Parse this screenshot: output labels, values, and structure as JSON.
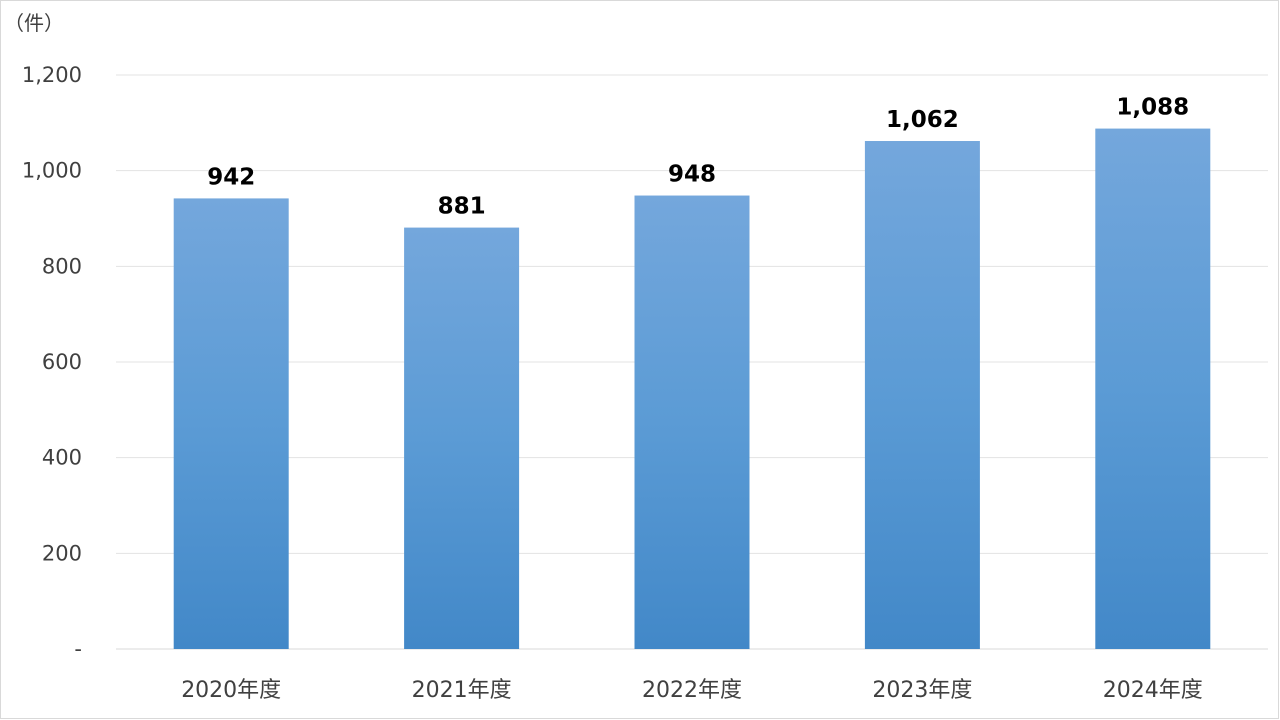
{
  "chart_data": {
    "type": "bar",
    "unit_label": "（件）",
    "categories": [
      "2020年度",
      "2021年度",
      "2022年度",
      "2023年度",
      "2024年度"
    ],
    "values": [
      942,
      881,
      948,
      1062,
      1088
    ],
    "data_labels": [
      "942",
      "881",
      "948",
      "1,062",
      "1,088"
    ],
    "ylim": [
      0,
      1200
    ],
    "yticks": [
      0,
      200,
      400,
      600,
      800,
      1000,
      1200
    ],
    "ytick_labels": [
      "-",
      "200",
      "400",
      "600",
      "800",
      "1,000",
      "1,200"
    ],
    "grid": true,
    "legend": false,
    "colors": {
      "bar_top": "#74a7dc",
      "bar_mid": "#5b9bd5",
      "bar_bottom": "#4288c8"
    }
  }
}
